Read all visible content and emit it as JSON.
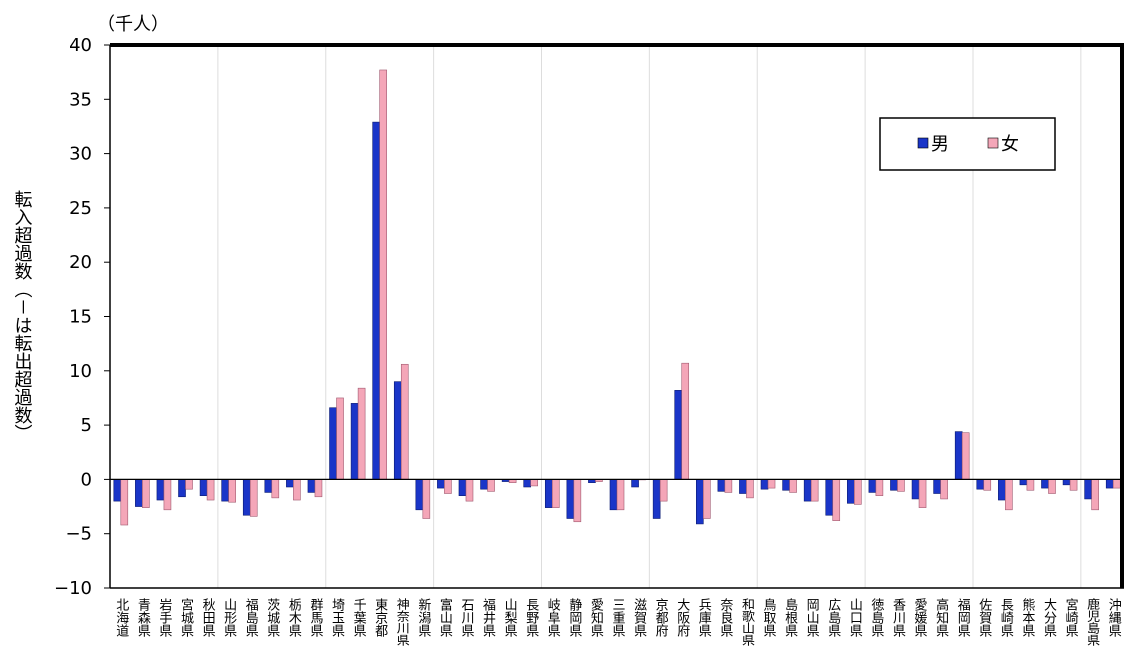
{
  "chart_data": {
    "type": "bar",
    "unit": "（千人）",
    "y_label": "転入超過数（－は転出超過数）",
    "categories": [
      "北海道",
      "青森県",
      "岩手県",
      "宮城県",
      "秋田県",
      "山形県",
      "福島県",
      "茨城県",
      "栃木県",
      "群馬県",
      "埼玉県",
      "千葉県",
      "東京都",
      "神奈川県",
      "新潟県",
      "富山県",
      "石川県",
      "福井県",
      "山梨県",
      "長野県",
      "岐阜県",
      "静岡県",
      "愛知県",
      "三重県",
      "滋賀県",
      "京都府",
      "大阪府",
      "兵庫県",
      "奈良県",
      "和歌山県",
      "鳥取県",
      "島根県",
      "岡山県",
      "広島県",
      "山口県",
      "徳島県",
      "香川県",
      "愛媛県",
      "高知県",
      "福岡県",
      "佐賀県",
      "長崎県",
      "熊本県",
      "大分県",
      "宮崎県",
      "鹿児島県",
      "沖縄県"
    ],
    "series": [
      {
        "name": "男",
        "color": "#1a35c8",
        "values": [
          -2.0,
          -2.5,
          -1.9,
          -1.6,
          -1.5,
          -2.0,
          -3.3,
          -1.2,
          -0.7,
          -1.2,
          6.6,
          7.0,
          32.9,
          9.0,
          -2.8,
          -0.8,
          -1.5,
          -0.9,
          -0.2,
          -0.7,
          -2.6,
          -3.6,
          -0.3,
          -2.8,
          -0.7,
          -3.6,
          8.2,
          -4.1,
          -1.1,
          -1.3,
          -0.9,
          -1.0,
          -2.0,
          -3.3,
          -2.2,
          -1.2,
          -1.0,
          -1.8,
          -1.3,
          4.4,
          -0.9,
          -1.9,
          -0.5,
          -0.8,
          -0.5,
          -1.8,
          -0.8
        ]
      },
      {
        "name": "女",
        "color": "#f4a6b8",
        "values": [
          -4.2,
          -2.6,
          -2.8,
          -0.9,
          -1.9,
          -2.1,
          -3.4,
          -1.7,
          -1.9,
          -1.6,
          7.5,
          8.4,
          37.7,
          10.6,
          -3.6,
          -1.3,
          -2.0,
          -1.1,
          -0.3,
          -0.6,
          -2.6,
          -3.9,
          -0.2,
          -2.8,
          0,
          -2.0,
          10.7,
          -3.6,
          -1.2,
          -1.7,
          -0.8,
          -1.2,
          -2.0,
          -3.8,
          -2.3,
          -1.5,
          -1.1,
          -2.6,
          -1.8,
          4.3,
          -1.0,
          -2.8,
          -1.0,
          -1.3,
          -1.0,
          -2.8,
          -0.8
        ]
      }
    ],
    "ylim": [
      -10,
      40
    ],
    "yticks": [
      {
        "value": -10,
        "label": "−10"
      },
      {
        "value": -5,
        "label": "−5"
      },
      0,
      5,
      10,
      15,
      20,
      25,
      30,
      35,
      40
    ],
    "legend": "upper-right"
  }
}
